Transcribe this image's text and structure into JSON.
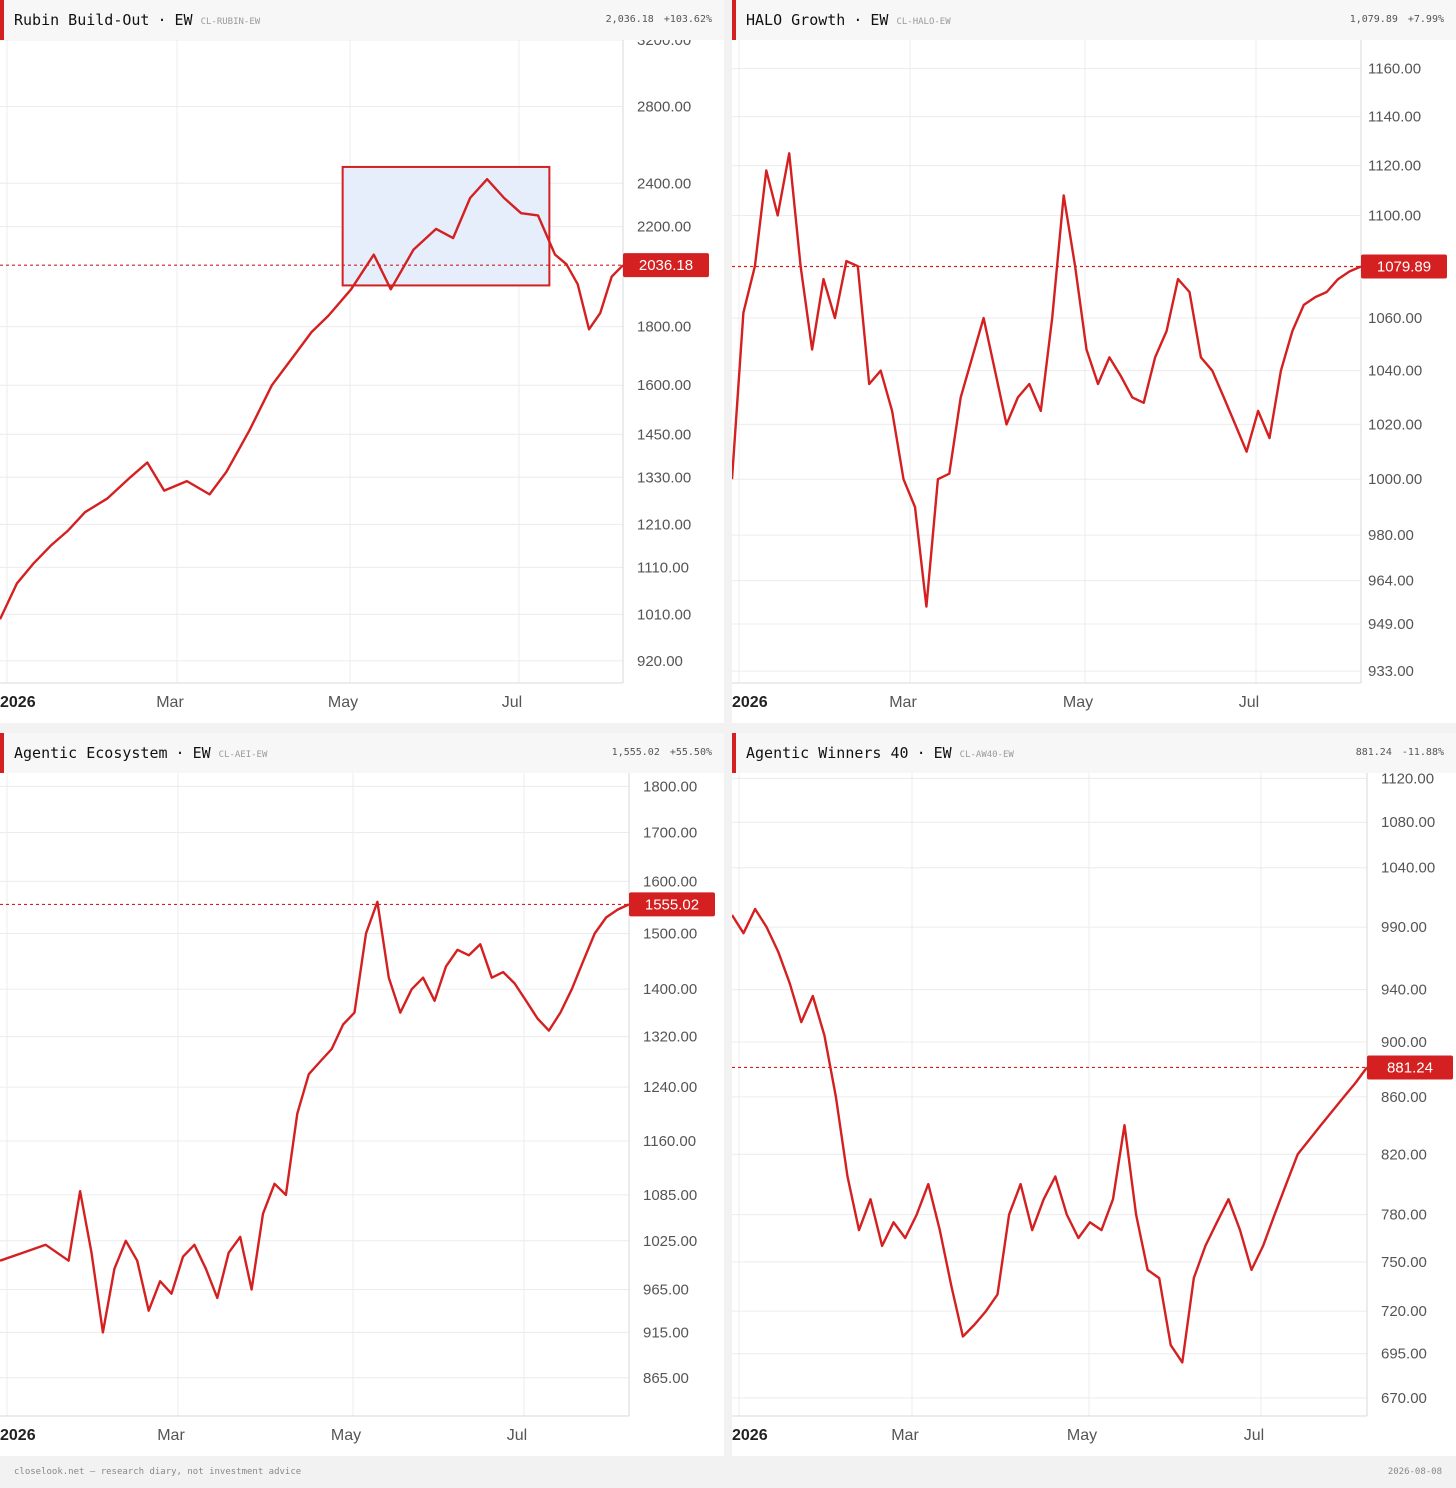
{
  "colors": {
    "line": "#d42020",
    "grid": "#ececec",
    "highlight_fill": "#e6eefc",
    "header_bg": "#f7f7f7",
    "axis_text": "#555555"
  },
  "chart_data": [
    {
      "type": "line",
      "title": "Rubin Build-Out",
      "weighting": "EW",
      "code": "CL-RUBIN-EW",
      "last_value": "2,036.18",
      "change": "+103.62%",
      "price_label": "2036.18",
      "current": 2036.18,
      "y_scale": "log",
      "ylim": [
        880,
        3200
      ],
      "y_ticks": [
        920,
        1010,
        1110,
        1210,
        1330,
        1450,
        1600,
        1800,
        2200,
        2400,
        2800,
        3200
      ],
      "y_tick_labels": [
        "920.00",
        "1010.00",
        "1110.00",
        "1210.00",
        "1330.00",
        "1450.00",
        "1600.00",
        "1800.00",
        "2200.00",
        "2400.00",
        "2800.00",
        "3200.00"
      ],
      "x_ticks": [
        "2026",
        "Mar",
        "May",
        "Jul"
      ],
      "x_end_day": 220,
      "grid": true,
      "highlight_box": {
        "x_from_day": 121,
        "x_to_day": 194,
        "y_from": 1955,
        "y_to": 2480
      },
      "x": [
        0,
        6,
        12,
        18,
        24,
        30,
        38,
        46,
        52,
        58,
        66,
        74,
        80,
        88,
        96,
        104,
        110,
        116,
        124,
        132,
        138,
        146,
        154,
        160,
        166,
        172,
        178,
        184,
        190,
        196,
        200,
        204,
        208,
        212,
        216,
        220
      ],
      "values": [
        1000,
        1075,
        1120,
        1160,
        1195,
        1240,
        1275,
        1330,
        1370,
        1295,
        1320,
        1285,
        1345,
        1460,
        1600,
        1700,
        1780,
        1840,
        1940,
        2080,
        1940,
        2100,
        2190,
        2150,
        2330,
        2420,
        2330,
        2260,
        2250,
        2080,
        2040,
        1960,
        1790,
        1850,
        1990,
        2036.18
      ]
    },
    {
      "type": "line",
      "title": "HALO Growth",
      "weighting": "EW",
      "code": "CL-HALO-EW",
      "last_value": "1,079.89",
      "change": "+7.99%",
      "price_label": "1079.89",
      "current": 1079.89,
      "y_scale": "log",
      "ylim": [
        929,
        1172
      ],
      "y_ticks": [
        933,
        949,
        964,
        980,
        1000,
        1020,
        1040,
        1060,
        1100,
        1120,
        1140,
        1160
      ],
      "y_tick_labels": [
        "933.00",
        "949.00",
        "964.00",
        "980.00",
        "1000.00",
        "1020.00",
        "1040.00",
        "1060.00",
        "1100.00",
        "1120.00",
        "1140.00",
        "1160.00"
      ],
      "x_ticks": [
        "2026",
        "Mar",
        "May",
        "Jul"
      ],
      "x_end_day": 220,
      "grid": true,
      "x": [
        0,
        4,
        8,
        12,
        16,
        20,
        24,
        28,
        32,
        36,
        40,
        44,
        48,
        52,
        56,
        60,
        64,
        68,
        72,
        76,
        80,
        84,
        88,
        92,
        96,
        100,
        104,
        108,
        112,
        116,
        120,
        124,
        128,
        132,
        136,
        140,
        144,
        148,
        152,
        156,
        160,
        164,
        168,
        172,
        176,
        180,
        184,
        188,
        192,
        196,
        200,
        204,
        208,
        212,
        216,
        220
      ],
      "values": [
        1000,
        1062,
        1080,
        1118,
        1100,
        1125,
        1080,
        1048,
        1075,
        1060,
        1082,
        1080,
        1035,
        1040,
        1025,
        1000,
        990,
        955,
        1000,
        1002,
        1030,
        1045,
        1060,
        1040,
        1020,
        1030,
        1035,
        1025,
        1060,
        1108,
        1080,
        1048,
        1035,
        1045,
        1038,
        1030,
        1028,
        1045,
        1055,
        1075,
        1070,
        1045,
        1040,
        1030,
        1020,
        1010,
        1025,
        1015,
        1040,
        1055,
        1065,
        1068,
        1070,
        1075,
        1078,
        1079.89
      ]
    },
    {
      "type": "line",
      "title": "Agentic Ecosystem",
      "weighting": "EW",
      "code": "CL-AEI-EW",
      "last_value": "1,555.02",
      "change": "+55.50%",
      "price_label": "1555.02",
      "current": 1555.02,
      "y_scale": "log",
      "ylim": [
        825,
        1830
      ],
      "y_ticks": [
        865,
        915,
        965,
        1025,
        1085,
        1160,
        1240,
        1320,
        1400,
        1500,
        1600,
        1700,
        1800
      ],
      "y_tick_labels": [
        "865.00",
        "915.00",
        "965.00",
        "1025.00",
        "1085.00",
        "1160.00",
        "1240.00",
        "1320.00",
        "1400.00",
        "1500.00",
        "1600.00",
        "1700.00",
        "1800.00"
      ],
      "x_ticks": [
        "2026",
        "Mar",
        "May",
        "Jul"
      ],
      "x_end_day": 220,
      "grid": true,
      "x": [
        0,
        8,
        16,
        24,
        28,
        32,
        36,
        40,
        44,
        48,
        52,
        56,
        60,
        64,
        68,
        72,
        76,
        80,
        84,
        88,
        92,
        96,
        100,
        104,
        108,
        112,
        116,
        120,
        124,
        128,
        132,
        136,
        140,
        144,
        148,
        152,
        156,
        160,
        164,
        168,
        172,
        176,
        180,
        184,
        188,
        192,
        196,
        200,
        204,
        208,
        212,
        216,
        220
      ],
      "values": [
        1000,
        1010,
        1020,
        1000,
        1090,
        1010,
        915,
        990,
        1025,
        1000,
        940,
        975,
        960,
        1005,
        1020,
        990,
        955,
        1010,
        1030,
        965,
        1060,
        1100,
        1085,
        1200,
        1260,
        1280,
        1300,
        1340,
        1360,
        1500,
        1560,
        1420,
        1360,
        1400,
        1420,
        1380,
        1440,
        1470,
        1460,
        1480,
        1420,
        1430,
        1410,
        1380,
        1350,
        1330,
        1360,
        1400,
        1450,
        1500,
        1530,
        1545,
        1555.02
      ]
    },
    {
      "type": "line",
      "title": "Agentic Winners 40",
      "weighting": "EW",
      "code": "CL-AW40-EW",
      "last_value": "881.24",
      "change": "-11.88%",
      "price_label": "881.24",
      "current": 881.24,
      "y_scale": "log",
      "ylim": [
        660,
        1125
      ],
      "y_ticks": [
        670,
        695,
        720,
        750,
        780,
        820,
        860,
        900,
        940,
        990,
        1040,
        1080,
        1120
      ],
      "y_tick_labels": [
        "670.00",
        "695.00",
        "720.00",
        "750.00",
        "780.00",
        "820.00",
        "860.00",
        "900.00",
        "940.00",
        "990.00",
        "1040.00",
        "1080.00",
        "1120.00"
      ],
      "x_ticks": [
        "2026",
        "Mar",
        "May",
        "Jul"
      ],
      "x_end_day": 220,
      "grid": true,
      "x": [
        0,
        4,
        8,
        12,
        16,
        20,
        24,
        28,
        32,
        36,
        40,
        44,
        48,
        52,
        56,
        60,
        64,
        68,
        72,
        76,
        80,
        84,
        88,
        92,
        96,
        100,
        104,
        108,
        112,
        116,
        120,
        124,
        128,
        132,
        136,
        140,
        144,
        148,
        152,
        156,
        160,
        164,
        168,
        172,
        176,
        180,
        184,
        188,
        192,
        196,
        200,
        204,
        208,
        212,
        216,
        220
      ],
      "values": [
        1000,
        985,
        1005,
        990,
        970,
        945,
        915,
        935,
        905,
        860,
        805,
        770,
        790,
        760,
        775,
        765,
        780,
        800,
        770,
        735,
        705,
        712,
        720,
        730,
        780,
        800,
        770,
        790,
        805,
        780,
        765,
        775,
        770,
        790,
        840,
        780,
        745,
        740,
        700,
        690,
        740,
        760,
        775,
        790,
        770,
        745,
        760,
        780,
        800,
        820,
        830,
        840,
        850,
        860,
        870,
        881.24
      ]
    }
  ],
  "footer": {
    "left": "closelook.net — research diary, not investment advice",
    "right": "2026-08-08"
  }
}
